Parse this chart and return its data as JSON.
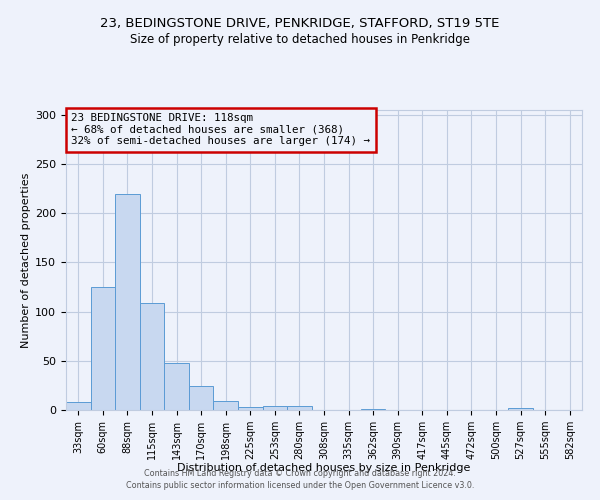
{
  "title": "23, BEDINGSTONE DRIVE, PENKRIDGE, STAFFORD, ST19 5TE",
  "subtitle": "Size of property relative to detached houses in Penkridge",
  "xlabel": "Distribution of detached houses by size in Penkridge",
  "ylabel": "Number of detached properties",
  "bar_labels": [
    "33sqm",
    "60sqm",
    "88sqm",
    "115sqm",
    "143sqm",
    "170sqm",
    "198sqm",
    "225sqm",
    "253sqm",
    "280sqm",
    "308sqm",
    "335sqm",
    "362sqm",
    "390sqm",
    "417sqm",
    "445sqm",
    "472sqm",
    "500sqm",
    "527sqm",
    "555sqm",
    "582sqm"
  ],
  "bar_values": [
    8,
    125,
    220,
    109,
    48,
    24,
    9,
    3,
    4,
    4,
    0,
    0,
    1,
    0,
    0,
    0,
    0,
    0,
    2,
    0,
    0
  ],
  "bar_color": "#c8d8f0",
  "bar_edge_color": "#5b9bd5",
  "property_label": "23 BEDINGSTONE DRIVE: 118sqm",
  "annotation_line1": "← 68% of detached houses are smaller (368)",
  "annotation_line2": "32% of semi-detached houses are larger (174) →",
  "annotation_box_color": "#cc0000",
  "ylim": [
    0,
    305
  ],
  "yticks": [
    0,
    50,
    100,
    150,
    200,
    250,
    300
  ],
  "footer1": "Contains HM Land Registry data © Crown copyright and database right 2024.",
  "footer2": "Contains public sector information licensed under the Open Government Licence v3.0.",
  "bg_color": "#eef2fb",
  "grid_color": "#c0cce0",
  "title_fontsize": 9.5,
  "subtitle_fontsize": 8.5,
  "axis_label_fontsize": 8,
  "tick_fontsize": 7
}
